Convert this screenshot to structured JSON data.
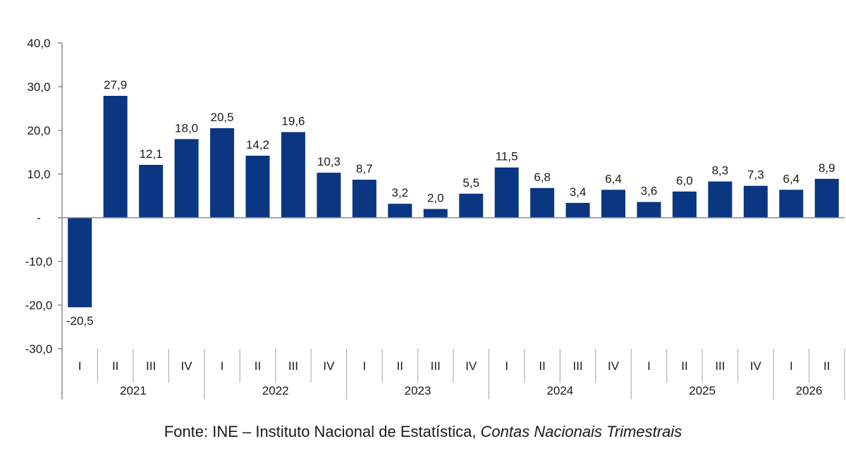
{
  "chart_data": {
    "type": "bar",
    "title": "",
    "xlabel": "",
    "ylabel": "",
    "ylim": [
      -30,
      40
    ],
    "yticks": [
      -30,
      -20,
      -10,
      0,
      10,
      20,
      30,
      40
    ],
    "ytick_labels": [
      "-30,0",
      "-20,0",
      "-10,0",
      "-",
      "10,0",
      "20,0",
      "30,0",
      "40,0"
    ],
    "grid": false,
    "bar_color": "#0a3682",
    "categories": [
      "I",
      "II",
      "III",
      "IV",
      "I",
      "II",
      "III",
      "IV",
      "I",
      "II",
      "III",
      "IV",
      "I",
      "II",
      "III",
      "IV",
      "I",
      "II",
      "III",
      "IV",
      "I",
      "II"
    ],
    "values": [
      -20.5,
      27.9,
      12.1,
      18.0,
      20.5,
      14.2,
      19.6,
      10.3,
      8.7,
      3.2,
      2.0,
      5.5,
      11.5,
      6.8,
      3.4,
      6.4,
      3.6,
      6.0,
      8.3,
      7.3,
      6.4,
      8.9
    ],
    "value_labels": [
      "-20,5",
      "27,9",
      "12,1",
      "18,0",
      "20,5",
      "14,2",
      "19,6",
      "10,3",
      "8,7",
      "3,2",
      "2,0",
      "5,5",
      "11,5",
      "6,8",
      "3,4",
      "6,4",
      "3,6",
      "6,0",
      "8,3",
      "7,3",
      "6,4",
      "8,9"
    ],
    "groups": [
      {
        "label": "2021",
        "count": 4
      },
      {
        "label": "2022",
        "count": 4
      },
      {
        "label": "2023",
        "count": 4
      },
      {
        "label": "2024",
        "count": 4
      },
      {
        "label": "2025",
        "count": 4
      },
      {
        "label": "2026",
        "count": 2
      }
    ]
  },
  "source": {
    "prefix": "Fonte: INE – Instituto Nacional de Estatística, ",
    "italic": "Contas Nacionais Trimestrais"
  }
}
